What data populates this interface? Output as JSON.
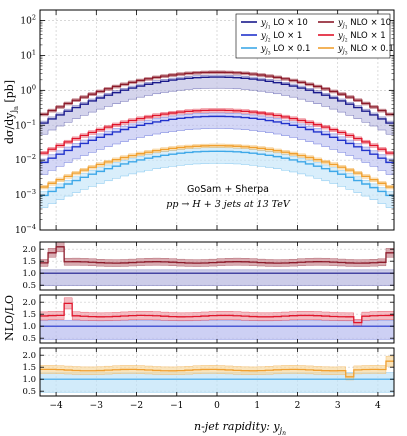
{
  "figure": {
    "annotation_line1": "GoSam + Sherpa",
    "annotation_line2": "pp → H + 3 jets at 13 TeV",
    "main_ylabel": "dσ/dy",
    "main_ylabel_sub": "j",
    "main_ylabel_subsub": "n",
    "main_ylabel_unit": " [pb]",
    "ratio_ylabel": "NLO/LO",
    "xlabel_text": "n-jet rapidity:  y",
    "xlabel_sub": "j",
    "xlabel_subsub": "n"
  },
  "legend": [
    {
      "id": "lo1",
      "sym": "y",
      "sub": "j",
      "subsub": "1",
      "text": " LO × 10",
      "color": "#1a1a8c"
    },
    {
      "id": "nlo1",
      "sym": "y",
      "sub": "j",
      "subsub": "1",
      "text": " NLO × 10",
      "color": "#8c1a2a"
    },
    {
      "id": "lo2",
      "sym": "y",
      "sub": "j",
      "subsub": "2",
      "text": " LO × 1",
      "color": "#2233cc"
    },
    {
      "id": "nlo2",
      "sym": "y",
      "sub": "j",
      "subsub": "2",
      "text": " NLO × 1",
      "color": "#e0142a"
    },
    {
      "id": "lo3",
      "sym": "y",
      "sub": "j",
      "subsub": "3",
      "text": " LO × 0.1",
      "color": "#3ea8e8"
    },
    {
      "id": "nlo3",
      "sym": "y",
      "sub": "j",
      "subsub": "3",
      "text": " NLO × 0.1",
      "color": "#f0a030"
    }
  ],
  "chart_data": {
    "type": "line",
    "x_edges_range": [
      -4.4,
      4.4
    ],
    "x_bin_width": 0.2,
    "xlim": [
      -4.4,
      4.4
    ],
    "x_ticks": [
      -4,
      -3,
      -2,
      -1,
      0,
      1,
      2,
      3,
      4
    ],
    "main": {
      "yscale": "log",
      "ylim": [
        0.0001,
        200
      ],
      "y_ticks": [
        {
          "value": 100,
          "base": "10",
          "exp": "2"
        },
        {
          "value": 10,
          "base": "10",
          "exp": "1"
        },
        {
          "value": 1,
          "base": "10",
          "exp": "0"
        },
        {
          "value": 0.1,
          "base": "10",
          "exp": "−1"
        },
        {
          "value": 0.01,
          "base": "10",
          "exp": "−2"
        },
        {
          "value": 0.001,
          "base": "10",
          "exp": "−3"
        },
        {
          "value": 0.0001,
          "base": "10",
          "exp": "−4"
        }
      ],
      "grid": true,
      "legend_position": "top-right",
      "series": [
        {
          "id": "lo1",
          "peak": 2.4,
          "edge": 0.1,
          "band_up": 0.14,
          "band_dn": 0.52,
          "color": "#1a1a8c",
          "fill": "#b8b8e0"
        },
        {
          "id": "nlo1",
          "peak": 3.3,
          "edge": 0.18,
          "band_up": 0.1,
          "band_dn": 0.1,
          "color": "#8c1a2a",
          "fill": "#c88890"
        },
        {
          "id": "lo2",
          "peak": 0.18,
          "edge": 0.0075,
          "band_up": 0.25,
          "band_dn": 0.55,
          "color": "#2233cc",
          "fill": "#b8bcf0"
        },
        {
          "id": "nlo2",
          "peak": 0.27,
          "edge": 0.014,
          "band_up": 0.12,
          "band_dn": 0.12,
          "color": "#e0142a",
          "fill": "#f0a0aa"
        },
        {
          "id": "lo3",
          "peak": 0.018,
          "edge": 0.00085,
          "band_up": 0.28,
          "band_dn": 0.55,
          "color": "#3ea8e8",
          "fill": "#bfe2f8"
        },
        {
          "id": "nlo3",
          "peak": 0.026,
          "edge": 0.0015,
          "band_up": 0.12,
          "band_dn": 0.12,
          "color": "#f0a030",
          "fill": "#f8d8a0"
        }
      ]
    },
    "ratio_panels": [
      {
        "lo": "lo1",
        "nlo": "nlo1",
        "ratio": 1.45,
        "spikes": [
          {
            "x": -4.1,
            "v": 1.85
          },
          {
            "x": -3.9,
            "v": 2.1
          },
          {
            "x": 4.3,
            "v": 1.85
          }
        ],
        "ylim": [
          0.3,
          2.3
        ],
        "y_ticks": [
          2.0,
          1.5,
          1.0,
          0.5
        ]
      },
      {
        "lo": "lo2",
        "nlo": "nlo2",
        "ratio": 1.42,
        "spikes": [
          {
            "x": -3.7,
            "v": 1.95
          },
          {
            "x": 3.5,
            "v": 1.15
          }
        ],
        "ylim": [
          0.3,
          2.3
        ],
        "y_ticks": [
          2.0,
          1.5,
          1.0,
          0.5
        ]
      },
      {
        "lo": "lo3",
        "nlo": "nlo3",
        "ratio": 1.38,
        "spikes": [
          {
            "x": 3.3,
            "v": 1.1
          },
          {
            "x": 4.3,
            "v": 1.75
          }
        ],
        "ylim": [
          0.3,
          2.3
        ],
        "y_ticks": [
          2.0,
          1.5,
          1.0,
          0.5
        ]
      }
    ]
  }
}
